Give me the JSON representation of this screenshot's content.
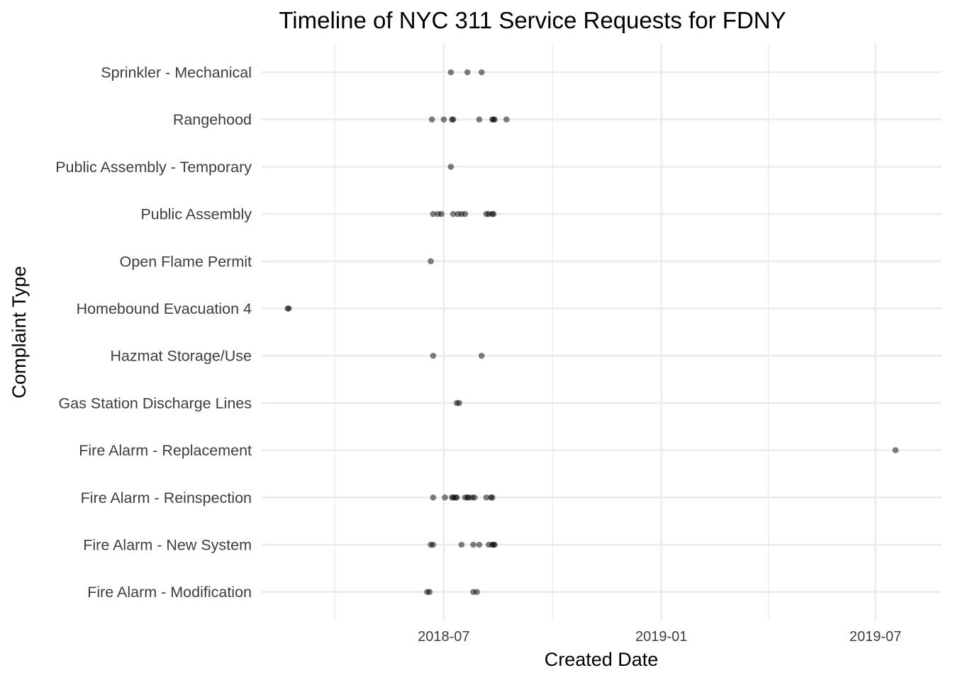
{
  "chart_data": {
    "type": "scatter",
    "title": "Timeline of NYC 311 Service Requests for FDNY",
    "xlabel": "Created Date",
    "ylabel": "Complaint Type",
    "x_ticks": [
      "2018-07",
      "2019-01",
      "2019-07"
    ],
    "xlim": [
      "2018-01-28",
      "2019-08-26"
    ],
    "grid": true,
    "legend": "none",
    "point_color": "#000000",
    "categories": [
      "Fire Alarm - Modification",
      "Fire Alarm - New System",
      "Fire Alarm - Reinspection",
      "Fire Alarm - Replacement",
      "Gas Station Discharge Lines",
      "Hazmat Storage/Use",
      "Homebound Evacuation 4",
      "Open Flame Permit",
      "Public Assembly",
      "Public Assembly - Temporary",
      "Rangehood",
      "Sprinkler - Mechanical"
    ],
    "points": [
      {
        "category": "Sprinkler - Mechanical",
        "x": "2018-07-07"
      },
      {
        "category": "Sprinkler - Mechanical",
        "x": "2018-07-21"
      },
      {
        "category": "Sprinkler - Mechanical",
        "x": "2018-08-02"
      },
      {
        "category": "Rangehood",
        "x": "2018-06-21"
      },
      {
        "category": "Rangehood",
        "x": "2018-07-01"
      },
      {
        "category": "Rangehood",
        "x": "2018-07-08"
      },
      {
        "category": "Rangehood",
        "x": "2018-07-09"
      },
      {
        "category": "Rangehood",
        "x": "2018-07-31"
      },
      {
        "category": "Rangehood",
        "x": "2018-08-11"
      },
      {
        "category": "Rangehood",
        "x": "2018-08-12"
      },
      {
        "category": "Rangehood",
        "x": "2018-08-13"
      },
      {
        "category": "Rangehood",
        "x": "2018-08-23"
      },
      {
        "category": "Public Assembly - Temporary",
        "x": "2018-07-07"
      },
      {
        "category": "Public Assembly",
        "x": "2018-06-22"
      },
      {
        "category": "Public Assembly",
        "x": "2018-06-26"
      },
      {
        "category": "Public Assembly",
        "x": "2018-06-29"
      },
      {
        "category": "Public Assembly",
        "x": "2018-07-09"
      },
      {
        "category": "Public Assembly",
        "x": "2018-07-13"
      },
      {
        "category": "Public Assembly",
        "x": "2018-07-16"
      },
      {
        "category": "Public Assembly",
        "x": "2018-07-19"
      },
      {
        "category": "Public Assembly",
        "x": "2018-08-06"
      },
      {
        "category": "Public Assembly",
        "x": "2018-08-08"
      },
      {
        "category": "Public Assembly",
        "x": "2018-08-11"
      },
      {
        "category": "Public Assembly",
        "x": "2018-08-12"
      },
      {
        "category": "Open Flame Permit",
        "x": "2018-06-20"
      },
      {
        "category": "Homebound Evacuation 4",
        "x": "2018-02-19"
      },
      {
        "category": "Homebound Evacuation 4",
        "x": "2018-02-20"
      },
      {
        "category": "Hazmat Storage/Use",
        "x": "2018-06-22"
      },
      {
        "category": "Hazmat Storage/Use",
        "x": "2018-08-02"
      },
      {
        "category": "Gas Station Discharge Lines",
        "x": "2018-07-12"
      },
      {
        "category": "Gas Station Discharge Lines",
        "x": "2018-07-14"
      },
      {
        "category": "Fire Alarm - Replacement",
        "x": "2019-07-18"
      },
      {
        "category": "Fire Alarm - Reinspection",
        "x": "2018-06-22"
      },
      {
        "category": "Fire Alarm - Reinspection",
        "x": "2018-07-02"
      },
      {
        "category": "Fire Alarm - Reinspection",
        "x": "2018-07-08"
      },
      {
        "category": "Fire Alarm - Reinspection",
        "x": "2018-07-09"
      },
      {
        "category": "Fire Alarm - Reinspection",
        "x": "2018-07-11"
      },
      {
        "category": "Fire Alarm - Reinspection",
        "x": "2018-07-12"
      },
      {
        "category": "Fire Alarm - Reinspection",
        "x": "2018-07-19"
      },
      {
        "category": "Fire Alarm - Reinspection",
        "x": "2018-07-21"
      },
      {
        "category": "Fire Alarm - Reinspection",
        "x": "2018-07-22"
      },
      {
        "category": "Fire Alarm - Reinspection",
        "x": "2018-07-25"
      },
      {
        "category": "Fire Alarm - Reinspection",
        "x": "2018-07-27"
      },
      {
        "category": "Fire Alarm - Reinspection",
        "x": "2018-08-06"
      },
      {
        "category": "Fire Alarm - Reinspection",
        "x": "2018-08-10"
      },
      {
        "category": "Fire Alarm - Reinspection",
        "x": "2018-08-11"
      },
      {
        "category": "Fire Alarm - New System",
        "x": "2018-06-20"
      },
      {
        "category": "Fire Alarm - New System",
        "x": "2018-06-22"
      },
      {
        "category": "Fire Alarm - New System",
        "x": "2018-07-16"
      },
      {
        "category": "Fire Alarm - New System",
        "x": "2018-07-26"
      },
      {
        "category": "Fire Alarm - New System",
        "x": "2018-07-31"
      },
      {
        "category": "Fire Alarm - New System",
        "x": "2018-08-08"
      },
      {
        "category": "Fire Alarm - New System",
        "x": "2018-08-11"
      },
      {
        "category": "Fire Alarm - New System",
        "x": "2018-08-12"
      },
      {
        "category": "Fire Alarm - New System",
        "x": "2018-08-13"
      },
      {
        "category": "Fire Alarm - Modification",
        "x": "2018-06-17"
      },
      {
        "category": "Fire Alarm - Modification",
        "x": "2018-06-19"
      },
      {
        "category": "Fire Alarm - Modification",
        "x": "2018-07-26"
      },
      {
        "category": "Fire Alarm - Modification",
        "x": "2018-07-29"
      }
    ]
  }
}
